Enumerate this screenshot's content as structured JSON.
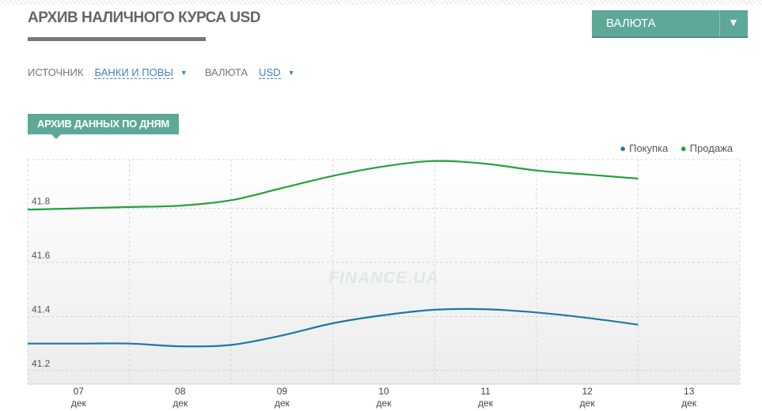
{
  "header": {
    "title": "АРХИВ НАЛИЧНОГО КУРСА USD",
    "currency_button_label": "ВАЛЮТА",
    "currency_button_arrow": "▼"
  },
  "filters": {
    "source_label": "ИСТОЧНИК",
    "source_value": "БАНКИ И ПОВЫ",
    "currency_label": "ВАЛЮТА",
    "currency_value": "USD",
    "arrow": "▼"
  },
  "section_tab": "АРХИВ ДАННЫХ ПО ДНЯМ",
  "watermark": "FINANCE.UA",
  "colors": {
    "accent": "#5ea898",
    "buy": "#1a7aa3",
    "sell": "#23a13b",
    "link": "#3f7fc0"
  },
  "chart_data": {
    "type": "line",
    "title": "",
    "xlabel": "",
    "ylabel": "",
    "ylim": [
      41.15,
      41.98
    ],
    "yticks": [
      41.2,
      41.4,
      41.6,
      41.8
    ],
    "x_range": [
      6.5,
      13.5
    ],
    "grid": true,
    "legend_position": "top-right",
    "x_ticks": [
      {
        "x": 7,
        "day": "07",
        "month": "дек"
      },
      {
        "x": 8,
        "day": "08",
        "month": "дек"
      },
      {
        "x": 9,
        "day": "09",
        "month": "дек"
      },
      {
        "x": 10,
        "day": "10",
        "month": "дек"
      },
      {
        "x": 11,
        "day": "11",
        "month": "дек"
      },
      {
        "x": 12,
        "day": "12",
        "month": "дек"
      },
      {
        "x": 13,
        "day": "13",
        "month": "дек"
      }
    ],
    "series": [
      {
        "name": "Покупка",
        "color": "#1a7aa3",
        "x": [
          6.5,
          7.0,
          7.5,
          8.0,
          8.5,
          9.0,
          9.5,
          10.0,
          10.5,
          11.0,
          11.5,
          12.0,
          12.5
        ],
        "values": [
          41.3,
          41.3,
          41.3,
          41.29,
          41.295,
          41.33,
          41.375,
          41.405,
          41.425,
          41.427,
          41.415,
          41.395,
          41.37
        ]
      },
      {
        "name": "Продажа",
        "color": "#23a13b",
        "x": [
          6.5,
          7.0,
          7.5,
          8.0,
          8.5,
          9.0,
          9.5,
          10.0,
          10.5,
          11.0,
          11.5,
          12.0,
          12.5
        ],
        "values": [
          41.795,
          41.8,
          41.805,
          41.81,
          41.83,
          41.875,
          41.92,
          41.955,
          41.975,
          41.965,
          41.94,
          41.925,
          41.91
        ]
      }
    ]
  }
}
